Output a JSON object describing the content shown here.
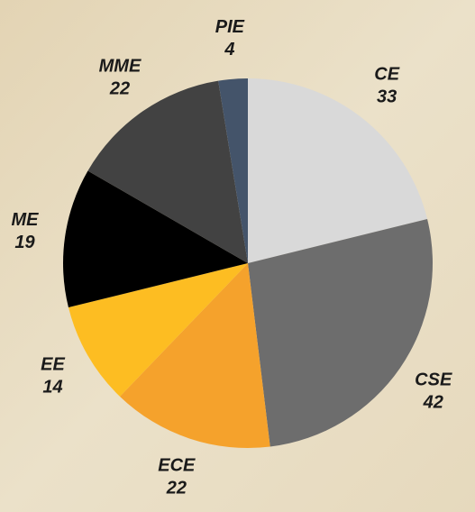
{
  "chart_data": {
    "type": "pie",
    "categories": [
      "CE",
      "CSE",
      "ECE",
      "EE",
      "ME",
      "MME",
      "PIE"
    ],
    "values": [
      33,
      42,
      22,
      14,
      19,
      22,
      4
    ],
    "colors": [
      "#d9d9d9",
      "#6d6d6d",
      "#f5a22c",
      "#fdbd22",
      "#000000",
      "#424242",
      "#44546a"
    ]
  }
}
